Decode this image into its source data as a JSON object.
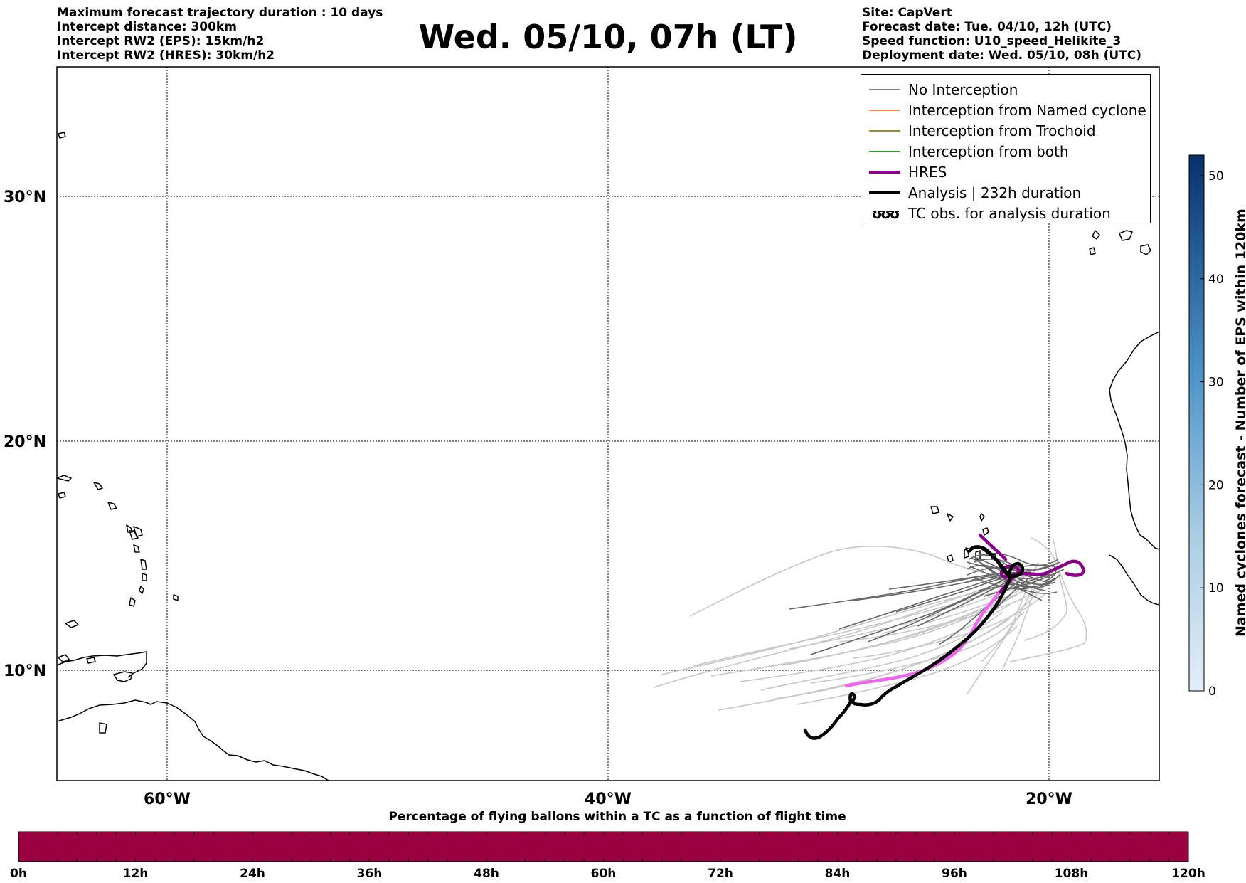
{
  "header": {
    "left_lines": [
      "Maximum forecast trajectory duration : 10 days",
      "Intercept distance: 300km",
      "Intercept RW2 (EPS):  15km/h2",
      "Intercept RW2 (HRES): 30km/h2"
    ],
    "title": "Wed. 05/10, 07h (LT)",
    "right_lines": [
      "Site: CapVert",
      "Forecast date: Tue. 04/10, 12h (UTC)",
      "Speed function: U10_speed_Helikite_3",
      "Deployment date: Wed. 05/10, 08h (UTC)"
    ]
  },
  "map": {
    "lat_labels": [
      "30°N",
      "20°N",
      "10°N"
    ],
    "lon_labels": [
      "60°W",
      "40°W",
      "20°W"
    ],
    "extent": {
      "lon_min": -65,
      "lon_max": -15,
      "lat_min": 5.1,
      "lat_max": 35.3
    }
  },
  "legend": {
    "items": [
      {
        "label": "No Interception",
        "color": "#808080"
      },
      {
        "label": "Interception from Named cyclone",
        "color": "#ff7f50"
      },
      {
        "label": "Interception from Trochoid",
        "color": "#9a8a3a"
      },
      {
        "label": "Interception from both",
        "color": "#2ca02c"
      },
      {
        "label": "HRES",
        "color": "#8b008b"
      },
      {
        "label": "Analysis | 232h duration",
        "color": "#000000"
      },
      {
        "label": "TC obs. for analysis duration",
        "symbol": "ʊʊʊ"
      }
    ]
  },
  "colorbar_right": {
    "title": "Named cyclones forecast - Number of EPS within 120km",
    "ticks": [
      "0",
      "10",
      "20",
      "30",
      "40",
      "50"
    ],
    "max": 52,
    "color_low": "#e3eef9",
    "color_high": "#08306b"
  },
  "colorbar_bottom": {
    "title": "Percentage of flying ballons within a TC as a function of flight time",
    "ticks": [
      "0h",
      "12h",
      "24h",
      "36h",
      "48h",
      "60h",
      "72h",
      "84h",
      "96h",
      "108h",
      "120h"
    ],
    "fill_color": "#9b0040"
  }
}
